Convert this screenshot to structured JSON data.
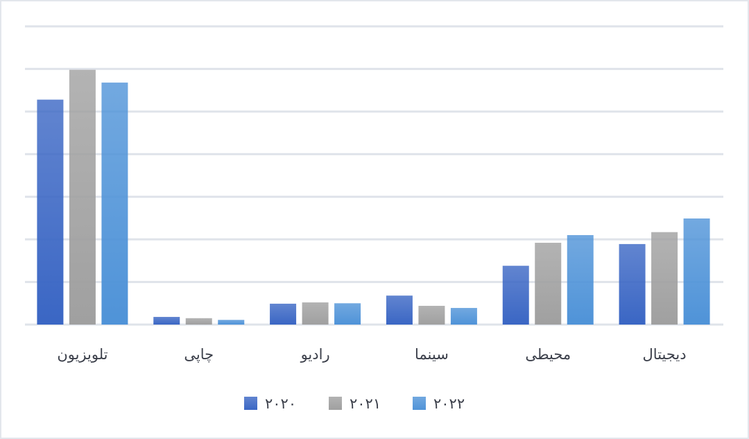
{
  "chart_data": {
    "type": "bar",
    "categories": [
      "تلویزیون",
      "چاپی",
      "رادیو",
      "سینما",
      "محیطی",
      "دیجیتال"
    ],
    "series": [
      {
        "name": "۲۰۲۰",
        "values": [
          5.28,
          0.18,
          0.49,
          0.68,
          1.38,
          1.89
        ],
        "color": "#3a66c4"
      },
      {
        "name": "۲۰۲۱",
        "values": [
          5.98,
          0.15,
          0.52,
          0.44,
          1.92,
          2.17
        ],
        "color": "#a0a0a0"
      },
      {
        "name": "۲۰۲۲",
        "values": [
          5.68,
          0.11,
          0.5,
          0.39,
          2.1,
          2.49
        ],
        "color": "#4f93d8"
      }
    ],
    "title": "",
    "xlabel": "",
    "ylabel": "",
    "ylim": [
      0,
      7
    ],
    "y_tick_labels_shown": false,
    "grid": true,
    "legend_position": "bottom"
  }
}
